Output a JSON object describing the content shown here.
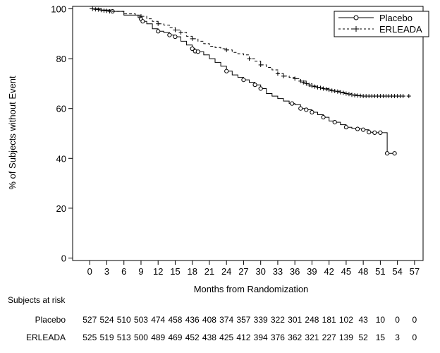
{
  "chart_data": {
    "type": "line",
    "title": "",
    "xlabel": "Months from Randomization",
    "ylabel": "% of Subjects without Event",
    "xlim": [
      -3,
      58.5
    ],
    "ylim": [
      -1,
      101
    ],
    "x_ticks": [
      0,
      3,
      6,
      9,
      12,
      15,
      18,
      21,
      24,
      27,
      30,
      33,
      36,
      39,
      42,
      45,
      48,
      51,
      54,
      57
    ],
    "y_ticks": [
      0,
      20,
      40,
      60,
      80,
      100
    ],
    "grid": false,
    "legend_position": "top-right",
    "series": [
      {
        "name": "Placebo",
        "style": "solid",
        "censor_marker": "circle",
        "color": "#000000",
        "points": [
          [
            0,
            100
          ],
          [
            2,
            99.5
          ],
          [
            4,
            99
          ],
          [
            6,
            97.5
          ],
          [
            8.5,
            96.5
          ],
          [
            9,
            96
          ],
          [
            9.3,
            95
          ],
          [
            10,
            94
          ],
          [
            11,
            92
          ],
          [
            12,
            91
          ],
          [
            13,
            90.5
          ],
          [
            14,
            89.5
          ],
          [
            15,
            88.8
          ],
          [
            16,
            87
          ],
          [
            17,
            85.5
          ],
          [
            18,
            84
          ],
          [
            18.5,
            83
          ],
          [
            19,
            82.8
          ],
          [
            20,
            81.5
          ],
          [
            21,
            80
          ],
          [
            22,
            78.5
          ],
          [
            23,
            77
          ],
          [
            24,
            75
          ],
          [
            25,
            73.5
          ],
          [
            26,
            72.5
          ],
          [
            27,
            71.5
          ],
          [
            28,
            70.5
          ],
          [
            29,
            69.5
          ],
          [
            30,
            68
          ],
          [
            31,
            66
          ],
          [
            32,
            65
          ],
          [
            33,
            64
          ],
          [
            34,
            63
          ],
          [
            35,
            62
          ],
          [
            36,
            61.5
          ],
          [
            37,
            60
          ],
          [
            38,
            59.5
          ],
          [
            39,
            58.5
          ],
          [
            40,
            57.5
          ],
          [
            41,
            56.5
          ],
          [
            42,
            55
          ],
          [
            43,
            54.5
          ],
          [
            44,
            53.5
          ],
          [
            45,
            52.5
          ],
          [
            46,
            52
          ],
          [
            47,
            51.8
          ],
          [
            48,
            51.5
          ],
          [
            49,
            50.5
          ],
          [
            50,
            50.3
          ],
          [
            51,
            50.3
          ],
          [
            52,
            50.3
          ],
          [
            52.2,
            42
          ],
          [
            53.5,
            42
          ]
        ],
        "censors": [
          [
            4,
            99
          ],
          [
            9,
            96
          ],
          [
            9.3,
            95
          ],
          [
            12,
            91
          ],
          [
            14,
            89.5
          ],
          [
            15,
            88.8
          ],
          [
            18,
            84
          ],
          [
            18.5,
            83
          ],
          [
            19,
            82.8
          ],
          [
            24,
            75
          ],
          [
            27,
            71.5
          ],
          [
            29,
            69.5
          ],
          [
            30,
            68
          ],
          [
            35.5,
            62
          ],
          [
            37,
            60
          ],
          [
            38,
            59.5
          ],
          [
            39,
            58.5
          ],
          [
            41,
            56.5
          ],
          [
            43,
            54.5
          ],
          [
            45,
            52.5
          ],
          [
            47,
            51.8
          ],
          [
            48,
            51.5
          ],
          [
            49,
            50.5
          ],
          [
            50,
            50.3
          ],
          [
            51,
            50.3
          ],
          [
            52.2,
            42
          ],
          [
            53.5,
            42
          ]
        ]
      },
      {
        "name": "ERLEADA",
        "style": "dashed",
        "censor_marker": "plus",
        "color": "#000000",
        "points": [
          [
            0,
            100
          ],
          [
            2,
            99.5
          ],
          [
            4,
            99
          ],
          [
            6,
            98
          ],
          [
            8,
            97.5
          ],
          [
            9,
            97
          ],
          [
            10,
            96
          ],
          [
            11,
            95
          ],
          [
            12,
            94
          ],
          [
            13,
            93.5
          ],
          [
            14,
            92.5
          ],
          [
            15,
            91.5
          ],
          [
            16,
            90.5
          ],
          [
            17,
            89
          ],
          [
            18,
            88
          ],
          [
            19,
            87
          ],
          [
            20,
            86
          ],
          [
            21,
            85
          ],
          [
            22,
            84.5
          ],
          [
            23,
            84
          ],
          [
            24,
            83.5
          ],
          [
            25,
            82.5
          ],
          [
            26,
            82
          ],
          [
            27,
            81.5
          ],
          [
            28,
            80
          ],
          [
            29,
            79
          ],
          [
            30,
            77.5
          ],
          [
            31,
            76.5
          ],
          [
            32,
            75.5
          ],
          [
            33,
            74
          ],
          [
            34,
            73
          ],
          [
            35,
            72.5
          ],
          [
            36,
            72
          ],
          [
            37,
            71
          ],
          [
            38,
            70
          ],
          [
            39,
            69
          ],
          [
            40,
            68.5
          ],
          [
            41,
            68
          ],
          [
            42,
            67.5
          ],
          [
            43,
            67
          ],
          [
            44,
            66.5
          ],
          [
            45,
            66
          ],
          [
            46,
            65.5
          ],
          [
            47,
            65.2
          ],
          [
            48,
            65
          ],
          [
            56,
            65
          ]
        ],
        "censors": [
          [
            0.5,
            100
          ],
          [
            1,
            99.8
          ],
          [
            1.5,
            99.7
          ],
          [
            2,
            99.5
          ],
          [
            2.5,
            99.3
          ],
          [
            3,
            99.2
          ],
          [
            3.5,
            99
          ],
          [
            9,
            97
          ],
          [
            12,
            94
          ],
          [
            15,
            91.5
          ],
          [
            16,
            90.5
          ],
          [
            18,
            88
          ],
          [
            24,
            83.5
          ],
          [
            28,
            80
          ],
          [
            30,
            77.5
          ],
          [
            33,
            74
          ],
          [
            34,
            73
          ],
          [
            36,
            72
          ],
          [
            37,
            71
          ],
          [
            37.5,
            70.5
          ],
          [
            38,
            70
          ],
          [
            38.5,
            69.5
          ],
          [
            39,
            69
          ],
          [
            39.5,
            68.8
          ],
          [
            40,
            68.5
          ],
          [
            40.5,
            68.3
          ],
          [
            41,
            68
          ],
          [
            41.5,
            67.8
          ],
          [
            42,
            67.5
          ],
          [
            42.5,
            67.2
          ],
          [
            43,
            67
          ],
          [
            43.5,
            66.8
          ],
          [
            44,
            66.5
          ],
          [
            44.5,
            66.3
          ],
          [
            45,
            66
          ],
          [
            45.5,
            65.8
          ],
          [
            46,
            65.5
          ],
          [
            46.5,
            65.3
          ],
          [
            47,
            65.2
          ],
          [
            47.5,
            65.1
          ],
          [
            48,
            65
          ],
          [
            48.5,
            65
          ],
          [
            49,
            65
          ],
          [
            49.5,
            65
          ],
          [
            50,
            65
          ],
          [
            50.5,
            65
          ],
          [
            51,
            65
          ],
          [
            51.5,
            65
          ],
          [
            52,
            65
          ],
          [
            52.5,
            65
          ],
          [
            53,
            65
          ],
          [
            53.5,
            65
          ],
          [
            54,
            65
          ],
          [
            54.5,
            65
          ],
          [
            55,
            65
          ],
          [
            56,
            65
          ]
        ]
      }
    ],
    "risk_table": {
      "title": "Subjects at risk",
      "rows": [
        {
          "label": "Placebo",
          "values": [
            "527",
            "524",
            "510",
            "503",
            "474",
            "458",
            "436",
            "408",
            "374",
            "357",
            "339",
            "322",
            "301",
            "248",
            "181",
            "102",
            "43",
            "10",
            "0",
            "0"
          ]
        },
        {
          "label": "ERLEADA",
          "values": [
            "525",
            "519",
            "513",
            "500",
            "489",
            "469",
            "452",
            "438",
            "425",
            "412",
            "394",
            "376",
            "362",
            "321",
            "227",
            "139",
            "52",
            "15",
            "3",
            "0"
          ]
        }
      ]
    }
  }
}
